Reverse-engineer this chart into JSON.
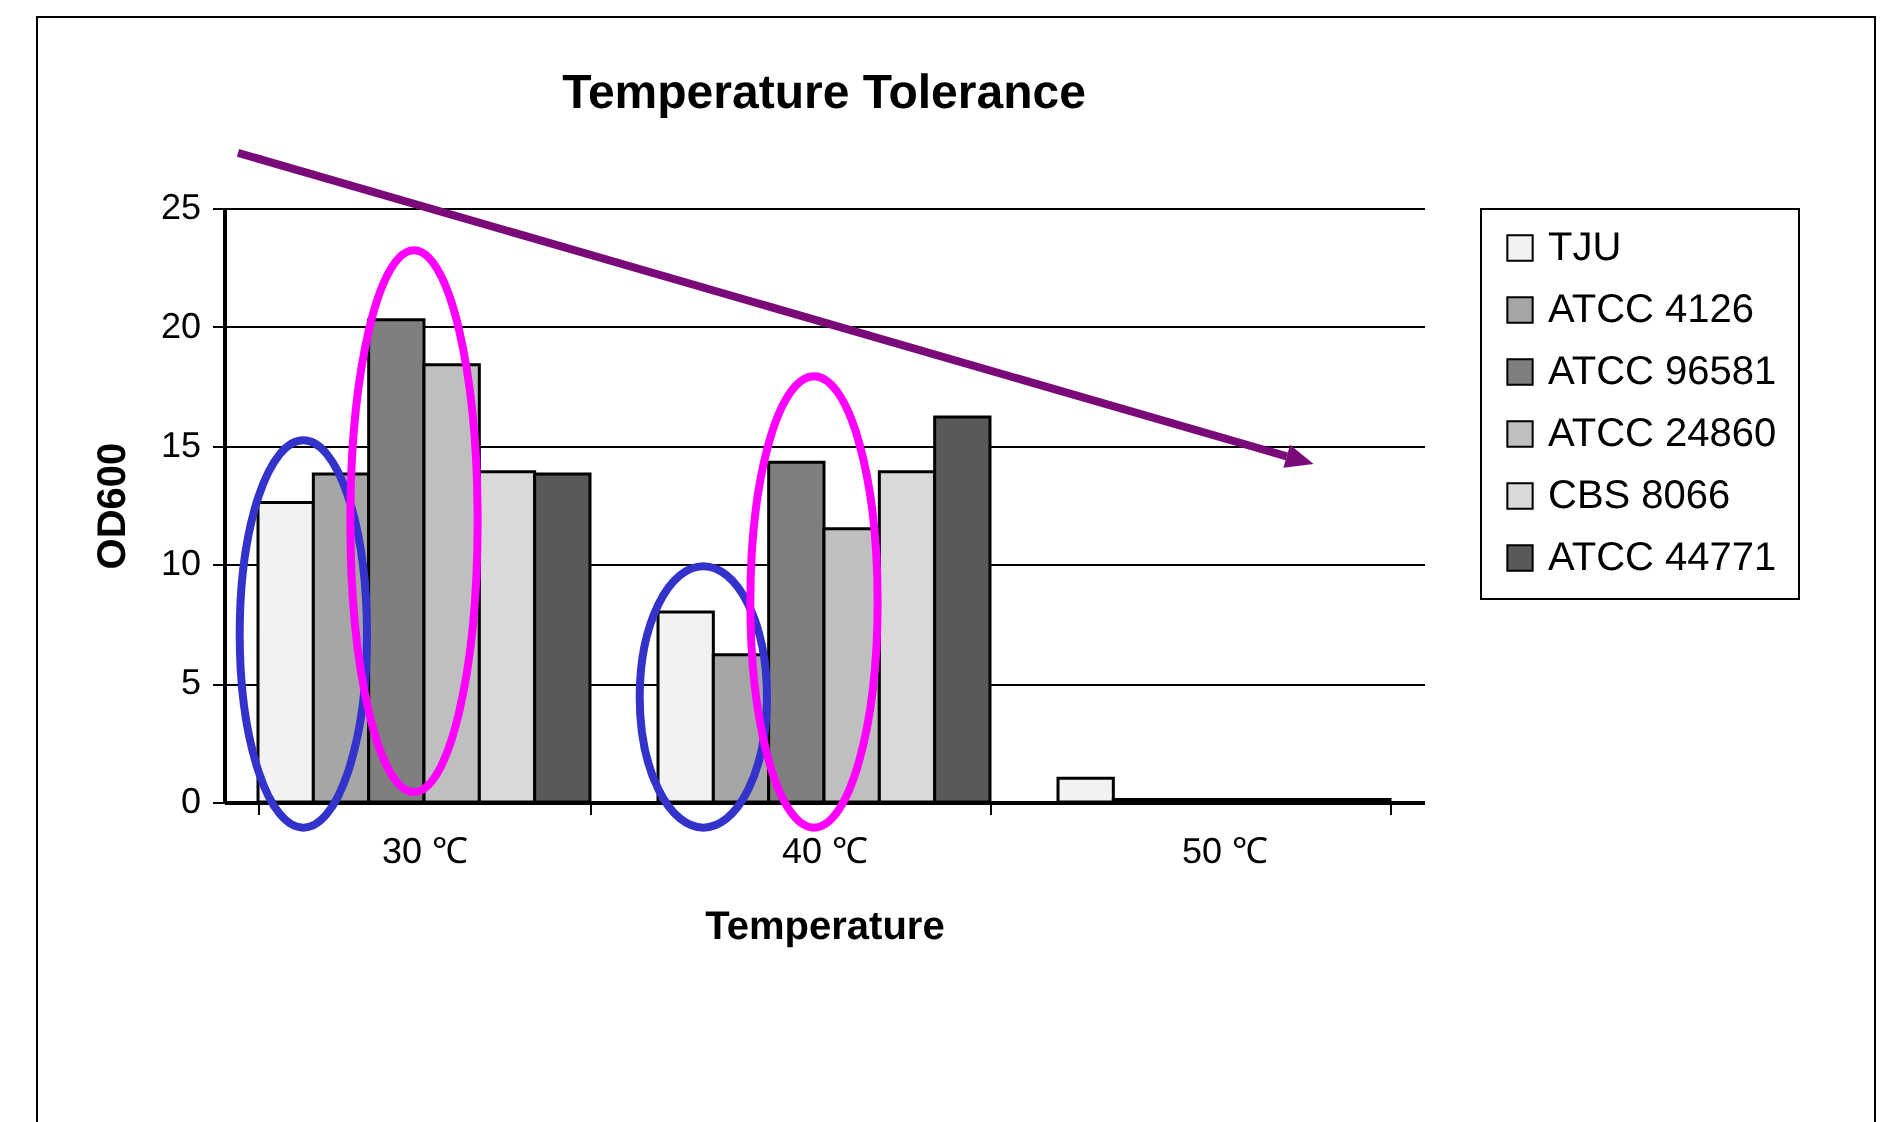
{
  "chart_data": {
    "type": "bar",
    "title": "Temperature Tolerance",
    "xlabel": "Temperature",
    "ylabel": "OD600",
    "categories": [
      "30 ℃",
      "40 ℃",
      "50 ℃"
    ],
    "series": [
      {
        "name": "TJU",
        "color": "#f2f2f2",
        "values": [
          12.6,
          8.0,
          1.0
        ]
      },
      {
        "name": "ATCC 4126",
        "color": "#a6a6a6",
        "values": [
          13.8,
          6.2,
          0.1
        ]
      },
      {
        "name": "ATCC 96581",
        "color": "#7f7f7f",
        "values": [
          20.3,
          14.3,
          0.1
        ]
      },
      {
        "name": "ATCC 24860",
        "color": "#bfbfbf",
        "values": [
          18.4,
          11.5,
          0.1
        ]
      },
      {
        "name": "CBS 8066",
        "color": "#d9d9d9",
        "values": [
          13.9,
          13.9,
          0.1
        ]
      },
      {
        "name": "ATCC 44771",
        "color": "#595959",
        "values": [
          13.8,
          16.2,
          0.1
        ]
      }
    ],
    "ylim": [
      0,
      25
    ],
    "yticks": [
      0,
      5,
      10,
      15,
      20,
      25
    ],
    "grid": "y",
    "legend": "right"
  }
}
